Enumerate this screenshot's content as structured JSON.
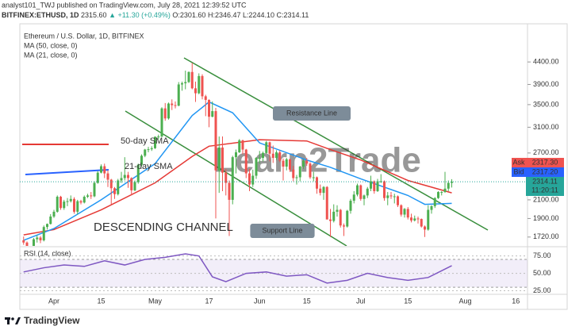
{
  "header": {
    "published": "analyst101_TWJ published on TradingView.com, July 28, 2021 12:39:52 UTC",
    "symbol": "BITFINEX:ETHUSD, 1D",
    "price": "2315.60",
    "change": "▲ +11.30 (+0.49%)",
    "ohlc": "O:2301.60 H:2346.47 L:2244.10 C:2314.11"
  },
  "footer": {
    "brand": "TradingView"
  },
  "chart_data": {
    "type": "candlestick",
    "title": "Ethereum / U.S. Dollar, 1D, BITFINEX",
    "watermark": "Learn2Trade",
    "log_scale": true,
    "up_color": "#4caf50",
    "down_color": "#ef5350",
    "ylim": [
      1640,
      5400
    ],
    "yticks": [
      {
        "value": 1720,
        "label": "1720.00"
      },
      {
        "value": 1900,
        "label": "1900.00"
      },
      {
        "value": 2100,
        "label": "2100.00"
      },
      {
        "value": 2700,
        "label": "2700.00"
      },
      {
        "value": 3100,
        "label": "3100.00"
      },
      {
        "value": 3500,
        "label": "3500.00"
      },
      {
        "value": 3900,
        "label": "3900.00"
      },
      {
        "value": 4400,
        "label": "4400.00"
      }
    ],
    "categories": [
      null,
      null,
      null,
      null,
      null,
      null,
      null,
      null,
      null,
      "Apr",
      null,
      null,
      null,
      null,
      null,
      null,
      null,
      null,
      null,
      null,
      null,
      null,
      null,
      "15",
      null,
      null,
      null,
      null,
      null,
      null,
      null,
      null,
      null,
      null,
      null,
      null,
      null,
      null,
      null,
      "May",
      null,
      null,
      null,
      null,
      null,
      null,
      null,
      null,
      null,
      null,
      null,
      null,
      null,
      null,
      null,
      "17",
      null,
      null,
      null,
      null,
      null,
      null,
      null,
      null,
      null,
      null,
      null,
      null,
      null,
      null,
      "Jun",
      null,
      null,
      null,
      null,
      null,
      null,
      null,
      null,
      null,
      null,
      null,
      null,
      null,
      "15",
      null,
      null,
      null,
      null,
      null,
      null,
      null,
      null,
      null,
      null,
      null,
      null,
      null,
      null,
      null,
      "Jul",
      null,
      null,
      null,
      null,
      null,
      null,
      null,
      null,
      null,
      null,
      null,
      null,
      null,
      "15",
      null,
      null,
      null,
      null,
      null,
      null,
      null,
      null,
      null,
      null,
      null,
      null,
      null,
      null,
      null,
      null,
      "Aug",
      null,
      null,
      null,
      null,
      null,
      null,
      null,
      null,
      null,
      null,
      null,
      null,
      null,
      null,
      "16",
      null,
      null,
      null
    ],
    "ohlc": [
      [
        1690,
        1725,
        1650,
        1670
      ],
      [
        1670,
        1680,
        1570,
        1585
      ],
      [
        1585,
        1630,
        1545,
        1595
      ],
      [
        1595,
        1710,
        1590,
        1700
      ],
      [
        1700,
        1735,
        1670,
        1715
      ],
      [
        1715,
        1730,
        1665,
        1690
      ],
      [
        1690,
        1830,
        1680,
        1815
      ],
      [
        1815,
        1850,
        1790,
        1845
      ],
      [
        1845,
        1945,
        1840,
        1920
      ],
      [
        1920,
        1990,
        1905,
        1970
      ],
      [
        1970,
        2150,
        1960,
        2135
      ],
      [
        2135,
        2145,
        1990,
        2010
      ],
      [
        2010,
        2100,
        1990,
        2080
      ],
      [
        2080,
        2120,
        2030,
        2085
      ],
      [
        2085,
        2150,
        2070,
        2110
      ],
      [
        2110,
        2130,
        1950,
        1970
      ],
      [
        1970,
        2100,
        1940,
        2085
      ],
      [
        2085,
        2100,
        2050,
        2070
      ],
      [
        2070,
        2150,
        2060,
        2135
      ],
      [
        2135,
        2170,
        2120,
        2150
      ],
      [
        2150,
        2190,
        2110,
        2140
      ],
      [
        2140,
        2320,
        2130,
        2300
      ],
      [
        2300,
        2450,
        2290,
        2430
      ],
      [
        2430,
        2540,
        2420,
        2515
      ],
      [
        2515,
        2550,
        2360,
        2420
      ],
      [
        2420,
        2460,
        2250,
        2340
      ],
      [
        2340,
        2350,
        2050,
        2235
      ],
      [
        2235,
        2250,
        2110,
        2165
      ],
      [
        2165,
        2350,
        2150,
        2330
      ],
      [
        2330,
        2440,
        2300,
        2360
      ],
      [
        2360,
        2640,
        2330,
        2400
      ],
      [
        2400,
        2440,
        2240,
        2360
      ],
      [
        2360,
        2370,
        2150,
        2210
      ],
      [
        2210,
        2330,
        2200,
        2310
      ],
      [
        2310,
        2550,
        2290,
        2535
      ],
      [
        2535,
        2680,
        2510,
        2660
      ],
      [
        2660,
        2760,
        2640,
        2750
      ],
      [
        2750,
        2790,
        2710,
        2755
      ],
      [
        2755,
        2800,
        2730,
        2770
      ],
      [
        2770,
        2950,
        2760,
        2945
      ],
      [
        2945,
        2980,
        2900,
        2950
      ],
      [
        2950,
        3450,
        2940,
        3430
      ],
      [
        3430,
        3530,
        3210,
        3250
      ],
      [
        3250,
        3540,
        3230,
        3520
      ],
      [
        3520,
        3600,
        3400,
        3490
      ],
      [
        3490,
        3560,
        3430,
        3480
      ],
      [
        3480,
        3950,
        3470,
        3900
      ],
      [
        3900,
        3960,
        3770,
        3925
      ],
      [
        3925,
        4200,
        3800,
        3950
      ],
      [
        3950,
        4180,
        3930,
        4170
      ],
      [
        4170,
        4380,
        3800,
        3820
      ],
      [
        3820,
        3960,
        3550,
        3720
      ],
      [
        3720,
        4140,
        3700,
        4080
      ],
      [
        4080,
        4120,
        3600,
        3660
      ],
      [
        3660,
        3690,
        3290,
        3590
      ],
      [
        3590,
        3600,
        3100,
        3280
      ],
      [
        3280,
        3560,
        3270,
        3380
      ],
      [
        3380,
        3440,
        1900,
        2460
      ],
      [
        2460,
        2950,
        2180,
        2780
      ],
      [
        2780,
        2950,
        2200,
        2430
      ],
      [
        2430,
        2480,
        2150,
        2300
      ],
      [
        2300,
        2330,
        1730,
        2100
      ],
      [
        2100,
        2660,
        2050,
        2640
      ],
      [
        2640,
        2750,
        2420,
        2710
      ],
      [
        2710,
        2910,
        2700,
        2890
      ],
      [
        2890,
        2900,
        2680,
        2750
      ],
      [
        2750,
        2760,
        2360,
        2420
      ],
      [
        2420,
        2480,
        2200,
        2280
      ],
      [
        2280,
        2470,
        2250,
        2390
      ],
      [
        2390,
        2640,
        2350,
        2630
      ],
      [
        2630,
        2730,
        2550,
        2630
      ],
      [
        2630,
        2720,
        2580,
        2700
      ],
      [
        2700,
        2880,
        2690,
        2860
      ],
      [
        2860,
        2870,
        2580,
        2690
      ],
      [
        2690,
        2810,
        2560,
        2630
      ],
      [
        2630,
        2740,
        2600,
        2710
      ],
      [
        2710,
        2740,
        2570,
        2590
      ],
      [
        2590,
        2620,
        2330,
        2510
      ],
      [
        2510,
        2630,
        2460,
        2610
      ],
      [
        2610,
        2620,
        2440,
        2470
      ],
      [
        2470,
        2520,
        2320,
        2360
      ],
      [
        2360,
        2400,
        2280,
        2370
      ],
      [
        2370,
        2520,
        2320,
        2510
      ],
      [
        2510,
        2610,
        2480,
        2590
      ],
      [
        2590,
        2630,
        2520,
        2550
      ],
      [
        2550,
        2570,
        2350,
        2370
      ],
      [
        2370,
        2440,
        2320,
        2370
      ],
      [
        2370,
        2380,
        2170,
        2230
      ],
      [
        2230,
        2280,
        2150,
        2180
      ],
      [
        2180,
        2260,
        2100,
        2250
      ],
      [
        2250,
        2260,
        1890,
        1890
      ],
      [
        1890,
        2000,
        1720,
        1875
      ],
      [
        1875,
        2050,
        1860,
        1970
      ],
      [
        1970,
        2040,
        1920,
        1990
      ],
      [
        1990,
        2000,
        1810,
        1830
      ],
      [
        1830,
        1850,
        1730,
        1820
      ],
      [
        1820,
        1990,
        1810,
        1980
      ],
      [
        1980,
        2110,
        1950,
        2090
      ],
      [
        2090,
        2200,
        2060,
        2160
      ],
      [
        2160,
        2290,
        2140,
        2270
      ],
      [
        2270,
        2280,
        2090,
        2110
      ],
      [
        2110,
        2160,
        2040,
        2150
      ],
      [
        2150,
        2250,
        2120,
        2230
      ],
      [
        2230,
        2390,
        2200,
        2320
      ],
      [
        2320,
        2330,
        2170,
        2200
      ],
      [
        2200,
        2350,
        2190,
        2320
      ],
      [
        2320,
        2410,
        2300,
        2320
      ],
      [
        2320,
        2330,
        2090,
        2120
      ],
      [
        2120,
        2190,
        2040,
        2150
      ],
      [
        2150,
        2190,
        2110,
        2140
      ],
      [
        2140,
        2170,
        2060,
        2140
      ],
      [
        2140,
        2150,
        2020,
        2040
      ],
      [
        2040,
        2050,
        1920,
        1940
      ],
      [
        1940,
        2010,
        1910,
        2000
      ],
      [
        2000,
        2020,
        1890,
        1910
      ],
      [
        1910,
        1950,
        1860,
        1880
      ],
      [
        1880,
        1930,
        1870,
        1900
      ],
      [
        1900,
        1920,
        1850,
        1895
      ],
      [
        1895,
        1900,
        1810,
        1820
      ],
      [
        1820,
        1830,
        1720,
        1790
      ],
      [
        1790,
        2040,
        1780,
        1990
      ],
      [
        1990,
        2040,
        1950,
        2030
      ],
      [
        2030,
        2130,
        2010,
        2120
      ],
      [
        2120,
        2200,
        2110,
        2190
      ],
      [
        2190,
        2200,
        2150,
        2190
      ],
      [
        2190,
        2440,
        2180,
        2230
      ],
      [
        2230,
        2330,
        2200,
        2300
      ],
      [
        2300,
        2346.47,
        2244.1,
        2314.11
      ],
      null,
      null,
      null,
      null,
      null,
      null,
      null,
      null,
      null,
      null,
      null,
      null,
      null,
      null,
      null,
      null,
      null,
      null,
      null,
      null,
      null,
      null
    ],
    "series": [
      {
        "name": "MA (50, close, 0)",
        "color": "#e53935",
        "x": [
          0,
          9,
          23,
          39,
          50,
          55,
          70,
          84,
          91,
          100,
          114,
          127
        ],
        "values": [
          1740,
          1790,
          1990,
          2300,
          2650,
          2800,
          2900,
          2880,
          2750,
          2600,
          2330,
          2180
        ]
      },
      {
        "name": "MA (21, close, 0)",
        "color": "#2196f3",
        "x": [
          0,
          9,
          23,
          39,
          50,
          55,
          62,
          70,
          84,
          91,
          100,
          114,
          119,
          127
        ],
        "values": [
          1690,
          1800,
          2100,
          2550,
          3300,
          3550,
          3350,
          2850,
          2600,
          2500,
          2350,
          2150,
          2050,
          2060
        ]
      }
    ],
    "annotations": [
      {
        "text": "50-day SMA",
        "color": "#e53935"
      },
      {
        "text": "21-day SMA",
        "color": "#2962ff"
      },
      {
        "text": "Resistance Line",
        "color": "#7d8c99"
      },
      {
        "text": "Support Line",
        "color": "#7d8c99"
      },
      {
        "text": "DESCENDING CHANNEL",
        "color": "#111111"
      }
    ],
    "price_tags": [
      {
        "label": "Ask",
        "text": "2317.30",
        "color": "#ef5350"
      },
      {
        "label": "Bid",
        "text": "2317.20",
        "color": "#2962ff"
      },
      {
        "label": "2314.11",
        "text": "11:20:11",
        "color": "#26a69a"
      }
    ],
    "rsi": {
      "title": "RSI (14, close)",
      "color": "#7e57c2",
      "band": [
        30,
        70
      ],
      "ylim": [
        21,
        86
      ],
      "yticks": [
        {
          "value": 25,
          "label": "25.00"
        },
        {
          "value": 50,
          "label": "50.00"
        },
        {
          "value": 75,
          "label": "75.00"
        }
      ],
      "x": [
        0,
        6,
        12,
        18,
        24,
        30,
        36,
        42,
        48,
        52,
        56,
        60,
        66,
        72,
        78,
        84,
        90,
        96,
        102,
        108,
        114,
        120,
        127
      ],
      "values": [
        52,
        58,
        62,
        60,
        68,
        62,
        70,
        73,
        78,
        75,
        45,
        38,
        50,
        52,
        46,
        48,
        36,
        40,
        50,
        44,
        40,
        44,
        61
      ]
    }
  }
}
